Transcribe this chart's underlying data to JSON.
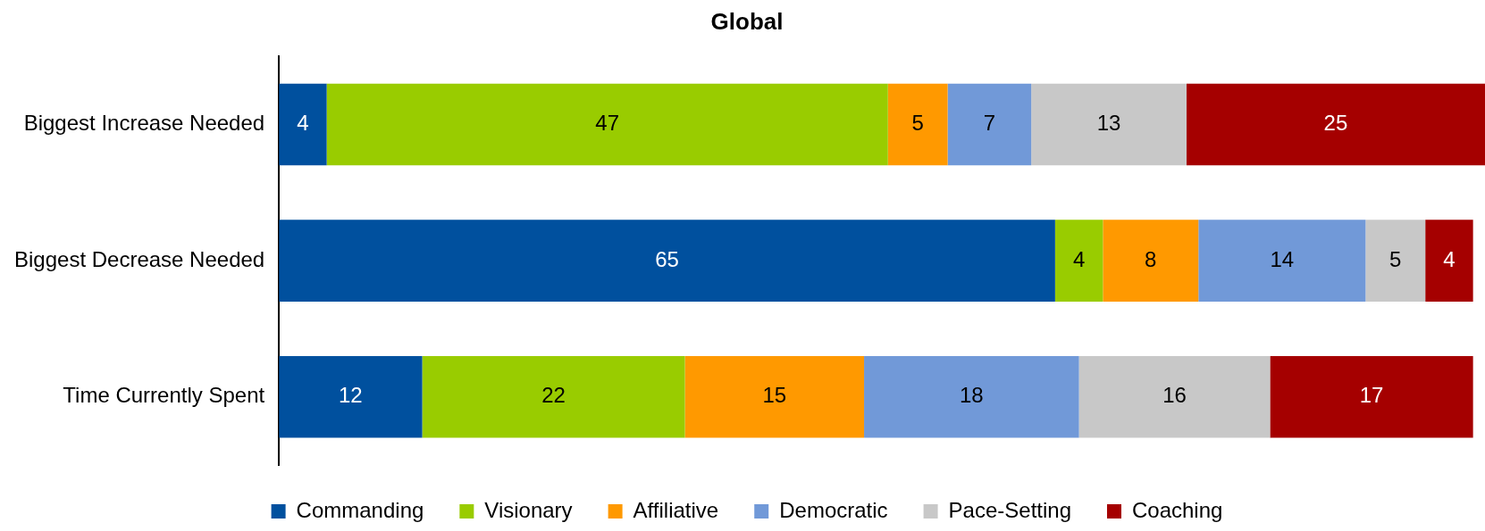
{
  "chart_data": {
    "type": "bar",
    "title": "Global",
    "orientation": "horizontal",
    "stacked": true,
    "data_labels": true,
    "legend": "bottom",
    "grid": false,
    "tick_labels": "y",
    "categories": [
      "Biggest Increase Needed",
      "Biggest Decrease Needed",
      "Time Currently Spent"
    ],
    "series": [
      {
        "name": "Commanding",
        "color": "#00509e",
        "values": [
          4,
          65,
          12
        ]
      },
      {
        "name": "Visionary",
        "color": "#99cc00",
        "values": [
          47,
          4,
          22
        ]
      },
      {
        "name": "Affiliative",
        "color": "#ff9900",
        "values": [
          5,
          8,
          15
        ]
      },
      {
        "name": "Democratic",
        "color": "#7199d8",
        "values": [
          7,
          14,
          18
        ]
      },
      {
        "name": "Pace-Setting",
        "color": "#c8c8c8",
        "values": [
          13,
          5,
          16
        ]
      },
      {
        "name": "Coaching",
        "color": "#a50000",
        "values": [
          25,
          4,
          17
        ]
      }
    ]
  }
}
